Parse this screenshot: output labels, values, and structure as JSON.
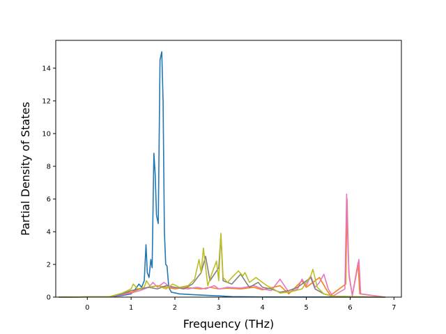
{
  "chart_data": {
    "type": "line",
    "title": "",
    "xlabel": "Frequency (THz)",
    "ylabel": "Partial Density of States",
    "xlim": [
      -0.72,
      7.17
    ],
    "ylim": [
      0,
      15.7
    ],
    "xticks": [
      0,
      1,
      2,
      3,
      4,
      5,
      6,
      7
    ],
    "yticks": [
      0,
      2,
      4,
      6,
      8,
      10,
      12,
      14
    ],
    "grid": false,
    "series": [
      {
        "color": "#1f77b4",
        "points": [
          [
            -0.65,
            0
          ],
          [
            0.5,
            0.02
          ],
          [
            0.8,
            0.1
          ],
          [
            1.0,
            0.2
          ],
          [
            1.1,
            0.5
          ],
          [
            1.18,
            0.8
          ],
          [
            1.24,
            0.6
          ],
          [
            1.3,
            1.0
          ],
          [
            1.34,
            3.2
          ],
          [
            1.37,
            1.5
          ],
          [
            1.41,
            1.2
          ],
          [
            1.45,
            2.3
          ],
          [
            1.48,
            1.8
          ],
          [
            1.52,
            8.8
          ],
          [
            1.55,
            7.5
          ],
          [
            1.58,
            5.0
          ],
          [
            1.62,
            4.5
          ],
          [
            1.66,
            14.5
          ],
          [
            1.7,
            15.0
          ],
          [
            1.73,
            12.0
          ],
          [
            1.76,
            4.0
          ],
          [
            1.79,
            2.0
          ],
          [
            1.82,
            1.9
          ],
          [
            1.86,
            0.6
          ],
          [
            1.92,
            0.3
          ],
          [
            2.1,
            0.2
          ],
          [
            2.4,
            0.15
          ],
          [
            2.8,
            0.1
          ],
          [
            3.0,
            0.08
          ],
          [
            3.1,
            0.06
          ],
          [
            3.3,
            0.03
          ],
          [
            4.0,
            0.01
          ],
          [
            6.8,
            0
          ]
        ]
      },
      {
        "color": "#ff7f0e",
        "points": [
          [
            -0.65,
            0
          ],
          [
            0.5,
            0.02
          ],
          [
            0.75,
            0.2
          ],
          [
            1.0,
            0.3
          ],
          [
            1.2,
            0.5
          ],
          [
            1.4,
            0.6
          ],
          [
            1.6,
            0.7
          ],
          [
            1.8,
            0.6
          ],
          [
            2.0,
            0.5
          ],
          [
            2.2,
            0.6
          ],
          [
            2.4,
            0.55
          ],
          [
            2.6,
            0.5
          ],
          [
            2.8,
            0.6
          ],
          [
            3.0,
            0.5
          ],
          [
            3.2,
            0.55
          ],
          [
            3.5,
            0.5
          ],
          [
            3.8,
            0.6
          ],
          [
            4.0,
            0.45
          ],
          [
            4.4,
            0.7
          ],
          [
            4.6,
            0.2
          ],
          [
            4.9,
            1.0
          ],
          [
            5.0,
            0.6
          ],
          [
            5.1,
            0.8
          ],
          [
            5.3,
            1.2
          ],
          [
            5.45,
            0.5
          ],
          [
            5.55,
            0.1
          ],
          [
            5.9,
            0.8
          ],
          [
            5.93,
            6.0
          ],
          [
            5.97,
            1.5
          ],
          [
            6.05,
            0.1
          ],
          [
            6.18,
            2.1
          ],
          [
            6.22,
            0.2
          ],
          [
            6.8,
            0
          ]
        ]
      },
      {
        "color": "#e377c2",
        "points": [
          [
            -0.65,
            0
          ],
          [
            0.5,
            0.02
          ],
          [
            0.8,
            0.15
          ],
          [
            1.0,
            0.25
          ],
          [
            1.2,
            0.4
          ],
          [
            1.4,
            0.6
          ],
          [
            1.5,
            0.9
          ],
          [
            1.6,
            0.6
          ],
          [
            1.75,
            0.9
          ],
          [
            1.9,
            0.6
          ],
          [
            2.1,
            0.55
          ],
          [
            2.3,
            0.5
          ],
          [
            2.5,
            0.6
          ],
          [
            2.7,
            0.5
          ],
          [
            2.9,
            0.7
          ],
          [
            3.0,
            0.5
          ],
          [
            3.2,
            0.6
          ],
          [
            3.5,
            0.55
          ],
          [
            3.8,
            0.7
          ],
          [
            4.0,
            0.5
          ],
          [
            4.2,
            0.4
          ],
          [
            4.4,
            1.1
          ],
          [
            4.6,
            0.3
          ],
          [
            4.8,
            0.5
          ],
          [
            4.9,
            1.1
          ],
          [
            5.0,
            0.7
          ],
          [
            5.1,
            1.3
          ],
          [
            5.2,
            0.6
          ],
          [
            5.3,
            0.9
          ],
          [
            5.4,
            1.4
          ],
          [
            5.5,
            0.5
          ],
          [
            5.6,
            0.05
          ],
          [
            5.88,
            0.5
          ],
          [
            5.92,
            6.3
          ],
          [
            5.95,
            3.0
          ],
          [
            5.98,
            1.2
          ],
          [
            6.05,
            0.1
          ],
          [
            6.17,
            1.8
          ],
          [
            6.2,
            2.3
          ],
          [
            6.24,
            0.2
          ],
          [
            6.8,
            0
          ]
        ]
      },
      {
        "color": "#7f7f7f",
        "points": [
          [
            -0.65,
            0
          ],
          [
            0.5,
            0.02
          ],
          [
            0.8,
            0.2
          ],
          [
            1.0,
            0.4
          ],
          [
            1.2,
            0.5
          ],
          [
            1.4,
            0.6
          ],
          [
            1.6,
            0.5
          ],
          [
            1.8,
            0.7
          ],
          [
            2.0,
            0.6
          ],
          [
            2.2,
            0.5
          ],
          [
            2.4,
            0.8
          ],
          [
            2.6,
            1.5
          ],
          [
            2.7,
            2.5
          ],
          [
            2.8,
            1.0
          ],
          [
            3.0,
            1.8
          ],
          [
            3.05,
            3.8
          ],
          [
            3.1,
            1.0
          ],
          [
            3.3,
            0.8
          ],
          [
            3.5,
            1.4
          ],
          [
            3.7,
            0.6
          ],
          [
            3.9,
            0.9
          ],
          [
            4.0,
            0.6
          ],
          [
            4.2,
            0.5
          ],
          [
            4.4,
            0.3
          ],
          [
            4.6,
            0.4
          ],
          [
            4.8,
            0.6
          ],
          [
            4.95,
            0.9
          ],
          [
            5.1,
            1.2
          ],
          [
            5.2,
            0.5
          ],
          [
            5.4,
            0.2
          ],
          [
            5.6,
            0.05
          ],
          [
            6.8,
            0
          ]
        ]
      },
      {
        "color": "#bcbd22",
        "points": [
          [
            -0.65,
            0
          ],
          [
            0.5,
            0.02
          ],
          [
            0.8,
            0.25
          ],
          [
            1.0,
            0.5
          ],
          [
            1.05,
            0.8
          ],
          [
            1.15,
            0.5
          ],
          [
            1.3,
            0.6
          ],
          [
            1.35,
            1.0
          ],
          [
            1.45,
            0.6
          ],
          [
            1.6,
            0.7
          ],
          [
            1.8,
            0.5
          ],
          [
            1.95,
            0.8
          ],
          [
            2.1,
            0.6
          ],
          [
            2.3,
            0.7
          ],
          [
            2.45,
            1.1
          ],
          [
            2.55,
            2.3
          ],
          [
            2.6,
            1.5
          ],
          [
            2.65,
            3.0
          ],
          [
            2.75,
            0.7
          ],
          [
            2.85,
            1.5
          ],
          [
            2.95,
            2.2
          ],
          [
            3.0,
            1.0
          ],
          [
            3.05,
            3.9
          ],
          [
            3.1,
            1.2
          ],
          [
            3.2,
            0.9
          ],
          [
            3.3,
            1.2
          ],
          [
            3.45,
            1.6
          ],
          [
            3.55,
            1.3
          ],
          [
            3.6,
            1.5
          ],
          [
            3.7,
            0.9
          ],
          [
            3.85,
            1.2
          ],
          [
            4.0,
            0.9
          ],
          [
            4.1,
            0.7
          ],
          [
            4.25,
            0.5
          ],
          [
            4.4,
            0.25
          ],
          [
            4.6,
            0.3
          ],
          [
            4.75,
            0.4
          ],
          [
            4.9,
            0.5
          ],
          [
            5.0,
            0.9
          ],
          [
            5.1,
            1.3
          ],
          [
            5.15,
            1.7
          ],
          [
            5.25,
            0.6
          ],
          [
            5.4,
            0.2
          ],
          [
            5.6,
            0.05
          ],
          [
            6.8,
            0
          ]
        ]
      }
    ]
  }
}
